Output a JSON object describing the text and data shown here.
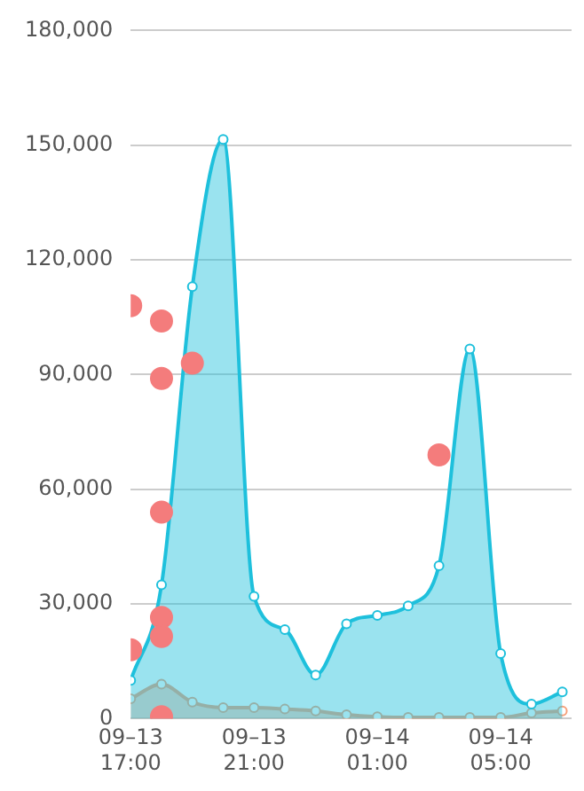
{
  "chart_data": {
    "type": "area",
    "x": [
      "--09-13T17:00",
      "--09-13T18:00",
      "--09-13T19:00",
      "--09-13T20:00",
      "--09-13T21:00",
      "--09-13T22:00",
      "--09-13T23:00",
      "--09-14T00:00",
      "--09-14T01:00",
      "--09-14T02:00",
      "--09-14T03:00",
      "--09-14T04:00",
      "--09-14T05:00",
      "--09-14T06:00",
      "--09-14T07:00"
    ],
    "series": [
      {
        "color": "#1ec0dc",
        "values": [
          10000,
          35000,
          113000,
          151500,
          32000,
          23300,
          11400,
          24800,
          27000,
          29500,
          40000,
          96700,
          17000,
          3800,
          7000
        ]
      },
      {
        "color": "#f7a07a",
        "values": [
          5200,
          9000,
          4300,
          2900,
          2900,
          2500,
          2000,
          1000,
          500,
          300,
          300,
          300,
          300,
          1500,
          2000
        ]
      },
      {
        "type": "scatter",
        "color": "#f47c7c",
        "x": [
          "--09-13T17:00",
          "--09-13T18:00",
          "--09-13T18:00",
          "--09-13T19:00",
          "--09-13T18:00",
          "--09-13T18:00",
          "--09-13T18:00",
          "--09-13T17:00",
          "--09-13T18:00",
          "--09-14T03:00"
        ],
        "values": [
          108000,
          104000,
          89000,
          93000,
          54000,
          26500,
          21500,
          18000,
          500,
          69000
        ]
      }
    ],
    "xlim": [
      "--09-13T17:00",
      "--09-14T07:18"
    ],
    "xticks": [
      {
        "value": "--09-13T17:00",
        "label": "09–13 17:00"
      },
      {
        "value": "--09-13T21:00",
        "label": "09–13 21:00"
      },
      {
        "value": "--09-14T01:00",
        "label": "09–14 01:00"
      },
      {
        "value": "--09-14T05:00",
        "label": "09–14 05:00"
      }
    ],
    "ylim": [
      0,
      180000
    ],
    "yticks": [
      0,
      {
        "value": 30000,
        "label": "30,000"
      },
      {
        "value": 60000,
        "label": "60,000"
      },
      {
        "value": 90000,
        "label": "90,000"
      },
      {
        "value": 120000,
        "label": "120,000"
      },
      {
        "value": 150000,
        "label": "150,000"
      },
      {
        "value": 180000,
        "label": "180,000"
      }
    ],
    "grid": "y",
    "marker": "circle",
    "legend": false
  }
}
